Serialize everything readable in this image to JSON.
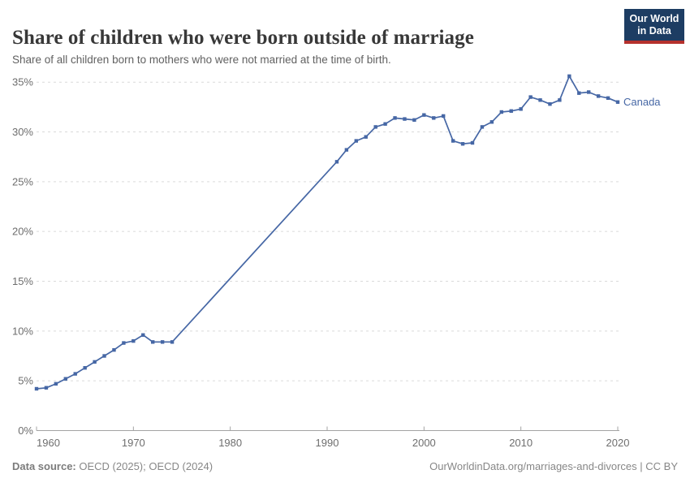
{
  "header": {
    "title": "Share of children who were born outside of marriage",
    "subtitle": "Share of all children born to mothers who were not married at the time of birth."
  },
  "logo": {
    "line1": "Our World",
    "line2": "in Data",
    "bg_color": "#1d3d63",
    "bar_color": "#b5312d"
  },
  "chart_data": {
    "type": "line",
    "title": "Share of children who were born outside of marriage",
    "entity": "Canada",
    "unit": "%",
    "xlabel": "",
    "ylabel": "",
    "xlim": [
      1960,
      2020
    ],
    "ylim": [
      0,
      35
    ],
    "x_ticks": [
      1960,
      1970,
      1980,
      1990,
      2000,
      2010,
      2020
    ],
    "y_ticks": [
      0,
      5,
      10,
      15,
      20,
      25,
      30,
      35
    ],
    "y_tick_suffix": "%",
    "grid": "horizontal-dashed",
    "legend_position": "line-end-label",
    "line_color": "#4667a5",
    "marker": "square",
    "series": [
      {
        "name": "Canada",
        "points": [
          [
            1960,
            4.2
          ],
          [
            1961,
            4.3
          ],
          [
            1962,
            4.7
          ],
          [
            1963,
            5.2
          ],
          [
            1964,
            5.7
          ],
          [
            1965,
            6.3
          ],
          [
            1966,
            6.9
          ],
          [
            1967,
            7.5
          ],
          [
            1968,
            8.1
          ],
          [
            1969,
            8.8
          ],
          [
            1970,
            9.0
          ],
          [
            1971,
            9.6
          ],
          [
            1972,
            8.9
          ],
          [
            1973,
            8.9
          ],
          [
            1974,
            8.9
          ],
          [
            1991,
            27.0
          ],
          [
            1992,
            28.2
          ],
          [
            1993,
            29.1
          ],
          [
            1994,
            29.5
          ],
          [
            1995,
            30.5
          ],
          [
            1996,
            30.8
          ],
          [
            1997,
            31.4
          ],
          [
            1998,
            31.3
          ],
          [
            1999,
            31.2
          ],
          [
            2000,
            31.7
          ],
          [
            2001,
            31.4
          ],
          [
            2002,
            31.6
          ],
          [
            2003,
            29.1
          ],
          [
            2004,
            28.8
          ],
          [
            2005,
            28.9
          ],
          [
            2006,
            30.5
          ],
          [
            2007,
            31.0
          ],
          [
            2008,
            32.0
          ],
          [
            2009,
            32.1
          ],
          [
            2010,
            32.3
          ],
          [
            2011,
            33.5
          ],
          [
            2012,
            33.2
          ],
          [
            2013,
            32.8
          ],
          [
            2014,
            33.2
          ],
          [
            2015,
            35.6
          ],
          [
            2016,
            33.9
          ],
          [
            2017,
            34.0
          ],
          [
            2018,
            33.6
          ],
          [
            2019,
            33.4
          ],
          [
            2020,
            33.0
          ]
        ]
      }
    ]
  },
  "footer": {
    "datasource_label": "Data source:",
    "datasource_value": "OECD (2025); OECD (2024)",
    "credit": "OurWorldinData.org/marriages-and-divorces | CC BY"
  }
}
